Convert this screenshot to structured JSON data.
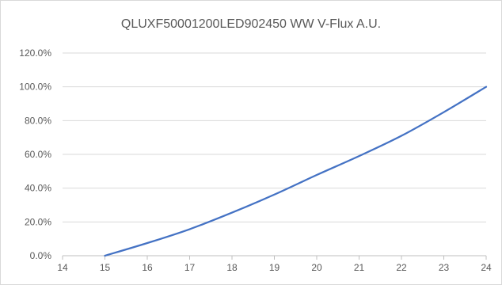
{
  "chart_data": {
    "type": "line",
    "title": "QLUXF50001200LED902450  WW  V-Flux A.U.",
    "xlabel": "",
    "ylabel": "",
    "x_ticks": [
      "14",
      "15",
      "16",
      "17",
      "18",
      "19",
      "20",
      "21",
      "22",
      "23",
      "24"
    ],
    "y_ticks": [
      "0.0%",
      "20.0%",
      "40.0%",
      "60.0%",
      "80.0%",
      "100.0%",
      "120.0%"
    ],
    "xlim": [
      14,
      24
    ],
    "ylim": [
      0,
      120
    ],
    "grid": "horizontal",
    "legend": "none",
    "series": [
      {
        "color": "#4472c4",
        "x": [
          15,
          16,
          17,
          18,
          19,
          20,
          21,
          22,
          23,
          24
        ],
        "values": [
          0.0,
          7.5,
          15.7,
          25.5,
          36.2,
          47.8,
          59.0,
          71.0,
          85.0,
          100.0
        ]
      }
    ]
  }
}
